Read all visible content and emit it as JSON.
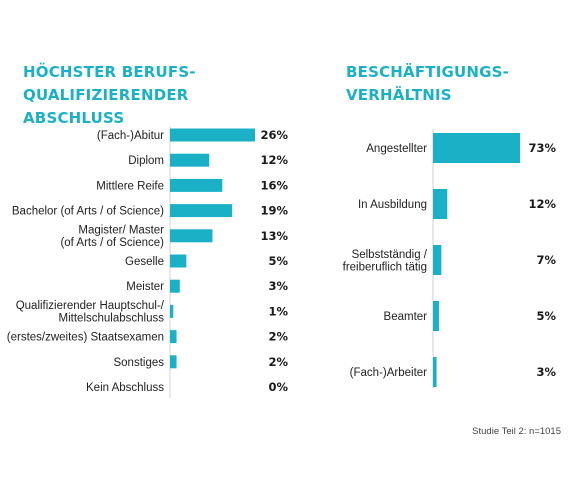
{
  "colors": {
    "accent": "#1ab1c7"
  },
  "chart_data": [
    {
      "type": "bar",
      "orientation": "horizontal",
      "title": "HÖCHSTER BERUFS-\nQUALIFIZIERENDER ABSCHLUSS",
      "categories": [
        "(Fach-)Abitur",
        "Diplom",
        "Mittlere Reife",
        "Bachelor (of Arts / of Science)",
        "Magister/ Master\n(of Arts / of Science)",
        "Geselle",
        "Meister",
        "Qualifizierender Hauptschul-/\nMittelschulabschluss",
        "(erstes/zweites) Staatsexamen",
        "Sonstiges",
        "Kein Abschluss"
      ],
      "values": [
        26,
        12,
        16,
        19,
        13,
        5,
        3,
        1,
        2,
        2,
        0
      ],
      "value_labels": [
        "26%",
        "12%",
        "16%",
        "19%",
        "13%",
        "5%",
        "3%",
        "1%",
        "2%",
        "2%",
        "0%"
      ],
      "unit": "%"
    },
    {
      "type": "bar",
      "orientation": "horizontal",
      "title": "BESCHÄFTIGUNGS-\nVERHÄLTNIS",
      "categories": [
        "Angestellter",
        "In Ausbildung",
        "Selbstständig /\nfreiberuflich tätig",
        "Beamter",
        "(Fach-)Arbeiter"
      ],
      "values": [
        73,
        12,
        7,
        5,
        3
      ],
      "value_labels": [
        "73%",
        "12%",
        "7%",
        "5%",
        "3%"
      ],
      "unit": "%"
    }
  ],
  "note": "Studie Teil 2: n=1015"
}
